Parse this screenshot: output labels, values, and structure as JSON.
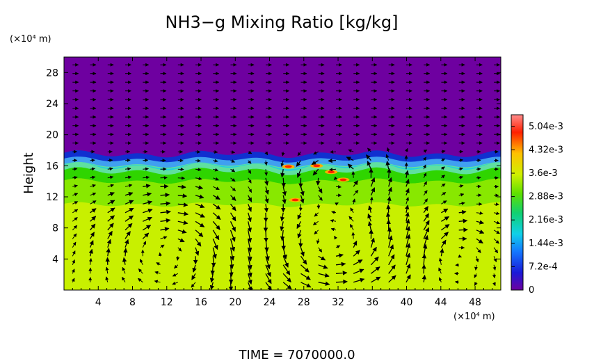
{
  "chart_data": {
    "type": "heatmap",
    "title": "NH3−g Mixing Ratio [kg/kg]",
    "ylabel": "Height",
    "x_unit_label": "(×10⁴ m)",
    "y_unit_label": "(×10⁴ m)",
    "footer": "TIME = 7070000.0",
    "xlim": [
      0,
      51
    ],
    "ylim": [
      0,
      30
    ],
    "x_ticks": [
      "4",
      "8",
      "12",
      "16",
      "20",
      "24",
      "28",
      "32",
      "36",
      "40",
      "44",
      "48"
    ],
    "y_ticks": [
      "4",
      "8",
      "12",
      "16",
      "20",
      "24",
      "28"
    ],
    "colorbar": {
      "ticks": [
        "5.04e-3",
        "4.32e-3",
        "3.6e-3",
        "2.88e-3",
        "2.16e-3",
        "1.44e-3",
        "7.2e-4",
        "0"
      ],
      "tick_values": [
        0.00504,
        0.00432,
        0.0036,
        0.00288,
        0.00216,
        0.00144,
        0.00072,
        0
      ],
      "range": [
        0,
        0.0054
      ]
    },
    "colors": {
      "upper": "#6e00a0",
      "lower": "#c8f000",
      "band_green": "#2fd500",
      "band_cyan": "#20d0e0",
      "band_blue": "#1030d0",
      "hot": "#ff2000"
    },
    "layers": [
      {
        "name": "upper layer",
        "y_from": 17.5,
        "y_to": 30,
        "value": 0
      },
      {
        "name": "gradient band",
        "y_from": 14,
        "y_to": 17.5,
        "value_range": [
          0.0005,
          0.0035
        ]
      },
      {
        "name": "transition",
        "y_from": 11,
        "y_to": 14,
        "value": 0.0031
      },
      {
        "name": "lower layer",
        "y_from": 0,
        "y_to": 11,
        "value": 0.0037
      }
    ],
    "hotspots": [
      {
        "x": 26.2,
        "y": 15.9,
        "value": 0.0047
      },
      {
        "x": 29.5,
        "y": 16.0,
        "value": 0.005
      },
      {
        "x": 31.2,
        "y": 15.2,
        "value": 0.0049
      },
      {
        "x": 27.0,
        "y": 11.6,
        "value": 0.0045
      },
      {
        "x": 32.6,
        "y": 14.2,
        "value": 0.0046
      }
    ],
    "vector_field": {
      "type": "quiver",
      "x_spacing": 2.05,
      "y_spacing": 1.12,
      "cells": [
        {
          "xc": 12.5,
          "yc": 5.5,
          "rx": 9.5,
          "ry": 6.5,
          "sense": -1,
          "strength": 2.4
        },
        {
          "xc": 31,
          "yc": 5.5,
          "rx": 10,
          "ry": 6.5,
          "sense": 1,
          "strength": 2.8
        },
        {
          "xc": 45,
          "yc": 5,
          "rx": 5.5,
          "ry": 4.5,
          "sense": -1,
          "strength": 2.0
        },
        {
          "xc": 32,
          "yc": 14.5,
          "rx": 7,
          "ry": 3.2,
          "sense": 1,
          "strength": 2.6
        }
      ]
    }
  }
}
